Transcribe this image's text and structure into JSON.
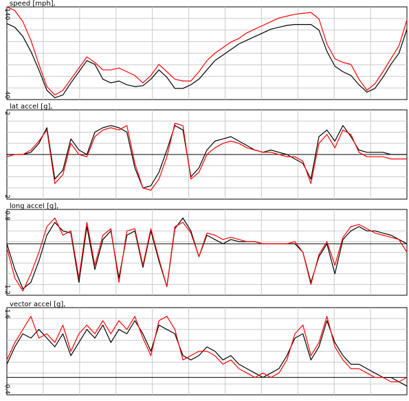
{
  "chart_data": [
    {
      "type": "line",
      "title": "speed [mph],",
      "ylim": [
        40,
        140
      ],
      "ytick_labels": [
        "140",
        "40"
      ],
      "zero_line": false,
      "x": [
        0,
        2,
        4,
        6,
        8,
        10,
        12,
        14,
        16,
        18,
        20,
        22,
        24,
        26,
        28,
        30,
        32,
        34,
        36,
        38,
        40,
        42,
        44,
        46,
        48,
        50,
        52,
        54,
        56,
        58,
        60,
        62,
        64,
        66,
        68,
        70,
        72,
        74,
        76,
        78,
        80,
        82,
        84,
        86,
        88,
        90,
        92,
        94,
        96,
        98,
        100
      ],
      "series": [
        {
          "color": "#000000",
          "values": [
            122,
            118,
            108,
            92,
            72,
            50,
            42,
            45,
            58,
            70,
            82,
            78,
            62,
            58,
            60,
            56,
            54,
            55,
            62,
            72,
            64,
            52,
            52,
            56,
            62,
            72,
            82,
            88,
            94,
            100,
            104,
            108,
            112,
            116,
            118,
            120,
            121,
            121,
            121,
            115,
            92,
            76,
            70,
            66,
            56,
            48,
            52,
            64,
            78,
            90,
            116
          ]
        },
        {
          "color": "#ff0000",
          "values": [
            140,
            136,
            124,
            104,
            78,
            54,
            45,
            50,
            62,
            74,
            86,
            80,
            72,
            72,
            74,
            70,
            66,
            58,
            66,
            78,
            70,
            62,
            60,
            60,
            70,
            82,
            90,
            96,
            102,
            106,
            112,
            116,
            120,
            124,
            128,
            130,
            132,
            133,
            134,
            127,
            100,
            84,
            80,
            78,
            62,
            50,
            57,
            70,
            84,
            98,
            126
          ]
        }
      ]
    },
    {
      "type": "line",
      "title": "lat accel [g],",
      "ylim": [
        -2,
        2
      ],
      "ytick_labels": [
        "2",
        "-2"
      ],
      "zero_line": true,
      "x": [
        0,
        2,
        4,
        6,
        8,
        10,
        12,
        14,
        16,
        18,
        20,
        22,
        24,
        26,
        28,
        30,
        32,
        34,
        36,
        38,
        40,
        42,
        44,
        46,
        48,
        50,
        52,
        54,
        56,
        58,
        60,
        62,
        64,
        66,
        68,
        70,
        72,
        74,
        76,
        78,
        80,
        82,
        84,
        86,
        88,
        90,
        92,
        94,
        96,
        98,
        100
      ],
      "series": [
        {
          "color": "#000000",
          "values": [
            0,
            0,
            0,
            0.1,
            0.5,
            1.2,
            -1.1,
            -0.7,
            0.7,
            0.2,
            0,
            1,
            1.2,
            1.3,
            1.2,
            1.0,
            -0.6,
            -1.5,
            -1.4,
            -0.8,
            0.2,
            1.3,
            1.1,
            -1.0,
            -0.6,
            0.2,
            0.6,
            0.7,
            0.8,
            0.6,
            0.4,
            0.2,
            0.1,
            0.2,
            0.1,
            0,
            -0.2,
            -0.4,
            -1.1,
            0.8,
            1.1,
            0.6,
            1.3,
            0.8,
            0.2,
            0.1,
            0.1,
            0.1,
            0,
            0,
            0
          ]
        },
        {
          "color": "#ff0000",
          "values": [
            -0.1,
            0,
            0,
            0.2,
            0.6,
            1.1,
            -1.3,
            -0.9,
            0.5,
            0,
            -0.1,
            0.8,
            1.1,
            1.2,
            1.1,
            1.3,
            -0.4,
            -1.5,
            -1.6,
            -1.1,
            -0.1,
            1.4,
            1.3,
            -1.1,
            -0.8,
            0,
            0.3,
            0.5,
            0.6,
            0.5,
            0.3,
            0.2,
            0.1,
            0.1,
            0,
            -0.1,
            -0.1,
            -0.3,
            -1.3,
            0.5,
            0.9,
            0.3,
            1.1,
            0.9,
            0.1,
            -0.1,
            -0.1,
            -0.1,
            -0.2,
            -0.2,
            -0.2
          ]
        }
      ]
    },
    {
      "type": "line",
      "title": "long accel [g],",
      "ylim": [
        -1.2,
        0.8
      ],
      "ytick_labels": [
        "0.8",
        "-1.2"
      ],
      "zero_line": true,
      "x": [
        0,
        2,
        4,
        6,
        8,
        10,
        12,
        14,
        16,
        18,
        20,
        22,
        24,
        26,
        28,
        30,
        32,
        34,
        36,
        38,
        40,
        42,
        44,
        46,
        48,
        50,
        52,
        54,
        56,
        58,
        60,
        62,
        64,
        66,
        68,
        70,
        72,
        74,
        76,
        78,
        80,
        82,
        84,
        86,
        88,
        90,
        92,
        94,
        96,
        98,
        100
      ],
      "series": [
        {
          "color": "#000000",
          "values": [
            0,
            -0.6,
            -1.05,
            -0.9,
            -0.4,
            0.2,
            0.5,
            0.3,
            0.25,
            -0.9,
            0.4,
            -0.6,
            0.1,
            0.3,
            -0.8,
            0.2,
            0.3,
            -0.55,
            0.3,
            -0.4,
            -1.0,
            0.35,
            0.6,
            0.3,
            -0.3,
            0.2,
            0.1,
            0,
            0.1,
            0.05,
            0.05,
            0.05,
            0,
            0,
            0,
            0,
            0,
            -0.2,
            -0.9,
            -0.3,
            0,
            -0.7,
            0.1,
            0.3,
            0.4,
            0.3,
            0.3,
            0.25,
            0.2,
            0.1,
            0
          ]
        },
        {
          "color": "#ff0000",
          "values": [
            -0.1,
            -0.8,
            -1.1,
            -0.7,
            -0.2,
            0.4,
            0.6,
            0.2,
            0.3,
            -0.8,
            0.5,
            -0.5,
            0.2,
            0.35,
            -0.9,
            0.3,
            0.35,
            -0.5,
            0.35,
            -0.35,
            -1.0,
            0.4,
            0.5,
            0.25,
            -0.3,
            0.25,
            0.2,
            0.1,
            0.15,
            0.1,
            0.05,
            0.05,
            0,
            0,
            0,
            0,
            0.05,
            -0.2,
            -0.95,
            -0.25,
            0.05,
            -0.5,
            0.15,
            0.4,
            0.45,
            0.35,
            0.25,
            0.2,
            0.15,
            0.1,
            -0.2
          ]
        }
      ]
    },
    {
      "type": "line",
      "title": "vector accel [g],",
      "ylim": [
        -0.4,
        1.6
      ],
      "ytick_labels": [
        "1.6",
        "-0.4"
      ],
      "zero_line": true,
      "x": [
        0,
        2,
        4,
        6,
        8,
        10,
        12,
        14,
        16,
        18,
        20,
        22,
        24,
        26,
        28,
        30,
        32,
        34,
        36,
        38,
        40,
        42,
        44,
        46,
        48,
        50,
        52,
        54,
        56,
        58,
        60,
        62,
        64,
        66,
        68,
        70,
        72,
        74,
        76,
        78,
        80,
        82,
        84,
        86,
        88,
        90,
        92,
        94,
        96,
        98,
        100
      ],
      "series": [
        {
          "color": "#000000",
          "values": [
            0.3,
            0.7,
            1.0,
            0.9,
            1.1,
            0.9,
            0.7,
            1.0,
            0.5,
            0.8,
            1.1,
            0.9,
            1.2,
            0.8,
            1.1,
            1.0,
            1.3,
            1.0,
            0.6,
            1.2,
            1.1,
            1.0,
            0.5,
            0.4,
            0.5,
            0.7,
            0.6,
            0.4,
            0.5,
            0.3,
            0.2,
            0.1,
            0.0,
            0.1,
            0.2,
            0.5,
            0.9,
            1.0,
            0.4,
            0.7,
            1.3,
            0.8,
            0.5,
            0.3,
            0.3,
            0.2,
            0.1,
            0.0,
            0.0,
            -0.1,
            -0.2
          ]
        },
        {
          "color": "#ff0000",
          "values": [
            0.4,
            0.8,
            1.1,
            1.4,
            0.9,
            1.0,
            0.8,
            1.2,
            0.6,
            1.0,
            1.2,
            1.0,
            1.3,
            1.0,
            1.3,
            1.1,
            1.4,
            0.9,
            0.5,
            1.3,
            1.4,
            1.1,
            0.4,
            0.5,
            0.6,
            0.6,
            0.5,
            0.3,
            0.4,
            0.2,
            0.1,
            0.0,
            0.1,
            0.0,
            0.1,
            0.4,
            1.0,
            1.2,
            0.5,
            0.8,
            1.4,
            0.7,
            0.4,
            0.2,
            0.2,
            0.1,
            0.0,
            0.0,
            -0.1,
            -0.1,
            0.0
          ]
        }
      ]
    }
  ]
}
